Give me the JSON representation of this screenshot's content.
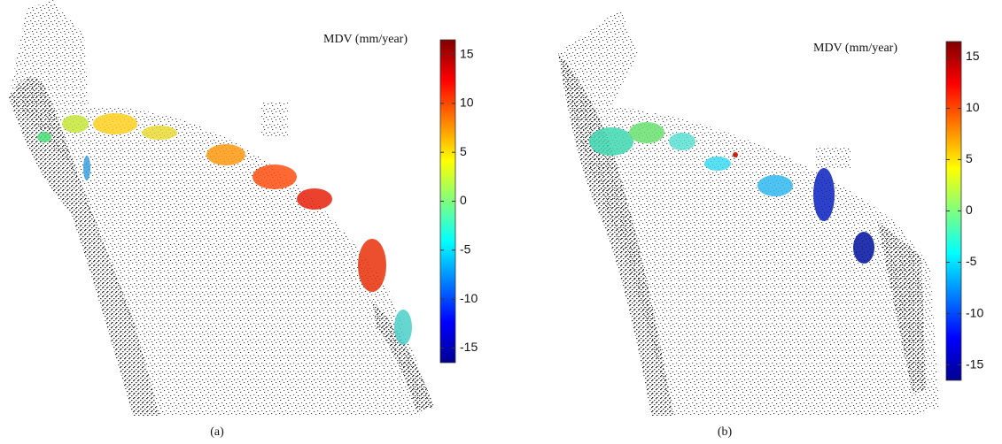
{
  "panels": [
    {
      "caption": "(a)",
      "colorbar": {
        "title": "MDV (mm/year)",
        "lim": [
          -16.5,
          16.5
        ],
        "ticks": [
          15,
          10,
          5,
          0,
          -5,
          -10,
          -15
        ]
      }
    },
    {
      "caption": "(b)",
      "colorbar": {
        "title": "MDV (mm/year)",
        "lim": [
          -16.5,
          16.5
        ],
        "ticks": [
          15,
          10,
          5,
          0,
          -5,
          -10,
          -15
        ]
      }
    }
  ]
}
